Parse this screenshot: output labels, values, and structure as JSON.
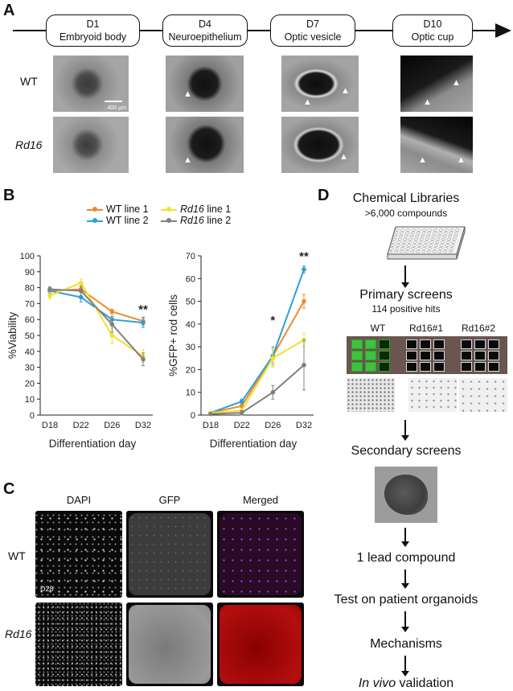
{
  "panels": {
    "a": "A",
    "b": "B",
    "c": "C",
    "d": "D"
  },
  "timeline": [
    {
      "day": "D1",
      "stage": "Embryoid body"
    },
    {
      "day": "D4",
      "stage": "Neuroepithelium"
    },
    {
      "day": "D7",
      "stage": "Optic vesicle"
    },
    {
      "day": "D10",
      "stage": "Optic cup"
    }
  ],
  "panel_a_rows": {
    "wt": "WT",
    "rd16": "Rd16"
  },
  "scale_bar": "400 µm",
  "legend": [
    {
      "name": "WT line 1",
      "color": "#ee8a2e"
    },
    {
      "name": "WT line 2",
      "color": "#2f9fd8"
    },
    {
      "name_prefix": "Rd16",
      "name_suffix": " line 1",
      "color": "#f2e12c"
    },
    {
      "name_prefix": "Rd16",
      "name_suffix": " line 2",
      "color": "#808080"
    }
  ],
  "chart_data": [
    {
      "type": "line",
      "ylabel": "%Viability",
      "xlabel": "Differentiation day",
      "categories": [
        "D18",
        "D22",
        "D26",
        "D32"
      ],
      "ylim": [
        0,
        100
      ],
      "yticks": [
        0,
        10,
        20,
        30,
        40,
        50,
        60,
        70,
        80,
        90,
        100
      ],
      "series": [
        {
          "name": "WT line 1",
          "color": "#ee8a2e",
          "values": [
            78,
            79,
            65,
            59
          ],
          "err": [
            1.5,
            1.5,
            1.5,
            2.5
          ]
        },
        {
          "name": "WT line 2",
          "color": "#2f9fd8",
          "values": [
            78,
            74,
            60,
            58
          ],
          "err": [
            1.5,
            3,
            2,
            3
          ]
        },
        {
          "name": "Rd16 line 1",
          "color": "#f2e12c",
          "values": [
            75,
            83,
            50,
            37
          ],
          "err": [
            2,
            2.5,
            5,
            4
          ]
        },
        {
          "name": "Rd16 line 2",
          "color": "#808080",
          "values": [
            79,
            78,
            57,
            35
          ],
          "err": [
            1.5,
            3,
            5,
            4
          ]
        }
      ],
      "annotations": [
        {
          "x": "D32",
          "text": "**",
          "y": 64
        }
      ]
    },
    {
      "type": "line",
      "ylabel": "%GFP+ rod cells",
      "xlabel": "Differentiation day",
      "categories": [
        "D18",
        "D22",
        "D26",
        "D32"
      ],
      "ylim": [
        0,
        70
      ],
      "yticks": [
        0,
        10,
        20,
        30,
        40,
        50,
        60,
        70
      ],
      "series": [
        {
          "name": "WT line 1",
          "color": "#ee8a2e",
          "values": [
            1,
            4,
            26,
            50
          ],
          "err": [
            0.5,
            1,
            3,
            3
          ]
        },
        {
          "name": "WT line 2",
          "color": "#2f9fd8",
          "values": [
            1,
            6,
            26,
            64
          ],
          "err": [
            0.5,
            1,
            4,
            1.5
          ]
        },
        {
          "name": "Rd16 line 1",
          "color": "#f2e12c",
          "values": [
            1,
            2,
            25,
            33
          ],
          "err": [
            0.5,
            1,
            4,
            3
          ]
        },
        {
          "name": "Rd16 line 2",
          "color": "#808080",
          "values": [
            0.5,
            1,
            10,
            22
          ],
          "err": [
            0.5,
            1,
            3,
            11
          ]
        }
      ],
      "annotations": [
        {
          "x": "D26",
          "text": "*",
          "y": 40
        },
        {
          "x": "D32",
          "text": "**",
          "y": 68
        }
      ]
    }
  ],
  "panel_c": {
    "cols": [
      "DAPI",
      "GFP",
      "Merged"
    ],
    "rows": [
      "WT",
      "Rd16"
    ],
    "day_label": "D28"
  },
  "panel_d": {
    "libraries_title": "Chemical Libraries",
    "libraries_sub": ">6,000 compounds",
    "primary_title": "Primary screens",
    "primary_sub": "114 positive hits",
    "plate_labels": [
      "WT",
      "Rd16#1",
      "Rd16#2"
    ],
    "secondary": "Secondary screens",
    "lead": "1 lead compound",
    "patient": "Test on patient organoids",
    "mechanisms": "Mechanisms",
    "invivo_italic": "In vivo",
    "invivo_rest": " validation"
  }
}
